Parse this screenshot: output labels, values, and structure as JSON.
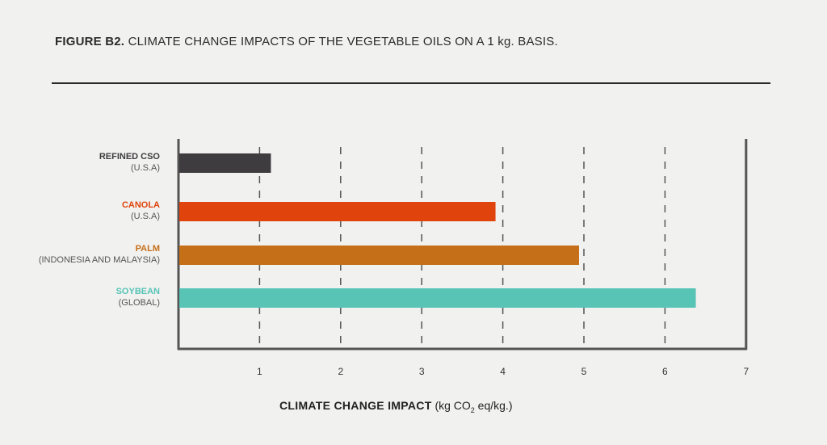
{
  "chart_data": {
    "type": "bar",
    "orientation": "horizontal",
    "title_bold": "FIGURE B2.",
    "title": "CLIMATE CHANGE IMPACTS OF THE VEGETABLE OILS ON A 1 kg. BASIS.",
    "xlabel_bold": "CLIMATE CHANGE IMPACT",
    "xlabel_unit_pre": "(kg CO",
    "xlabel_unit_sub": "2",
    "xlabel_unit_post": " eq/kg.)",
    "xlim": [
      0,
      7
    ],
    "xticks": [
      "1",
      "2",
      "3",
      "4",
      "5",
      "6",
      "7"
    ],
    "grid": "vertical dashed",
    "categories": [
      {
        "name": "REFINED CSO",
        "region": "(U.S.A)",
        "value": 1.13,
        "color": "#3e3c3e"
      },
      {
        "name": "CANOLA",
        "region": "(U.S.A)",
        "value": 3.9,
        "color": "#e0430b"
      },
      {
        "name": "PALM",
        "region": "(INDONESIA AND MALAYSIA)",
        "value": 4.93,
        "color": "#c56f19"
      },
      {
        "name": "SOYBEAN",
        "region": "(GLOBAL)",
        "value": 6.37,
        "color": "#57c4b6"
      }
    ]
  }
}
